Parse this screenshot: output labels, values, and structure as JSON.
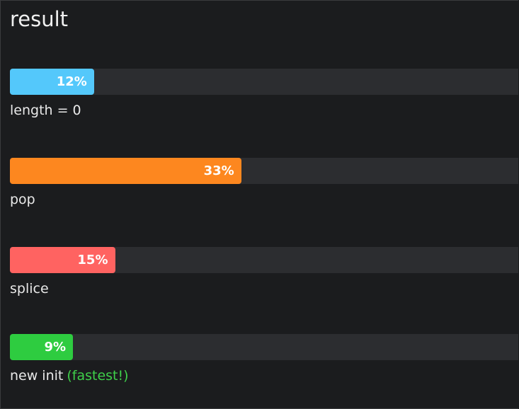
{
  "chart_data": {
    "type": "bar",
    "orientation": "horizontal",
    "title": "result",
    "categories": [
      "length = 0",
      "pop",
      "splice",
      "new init"
    ],
    "values": [
      12,
      33,
      15,
      9
    ],
    "value_labels": [
      "12%",
      "33%",
      "15%",
      "9%"
    ],
    "colors": [
      "#54c8fb",
      "#fd871f",
      "#ff6361",
      "#2ecc40"
    ],
    "xlim": [
      0,
      100
    ],
    "annotations": [
      {
        "text": "(fastest!)",
        "category": "new init",
        "color": "#3fcf4a"
      }
    ]
  }
}
